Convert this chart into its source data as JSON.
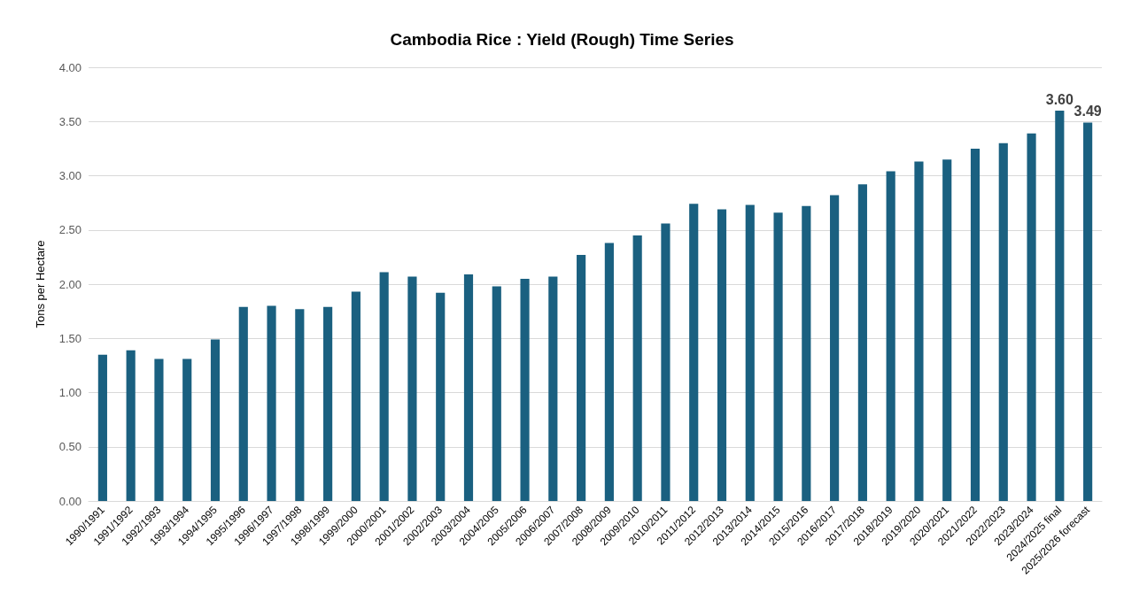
{
  "chart_data": {
    "type": "bar",
    "title": "Cambodia Rice : Yield (Rough) Time Series",
    "ylabel": "Tons per Hectare",
    "categories": [
      "1990/1991",
      "1991/1992",
      "1992/1993",
      "1993/1994",
      "1994/1995",
      "1995/1996",
      "1996/1997",
      "1997/1998",
      "1998/1999",
      "1999/2000",
      "2000/2001",
      "2001/2002",
      "2002/2003",
      "2003/2004",
      "2004/2005",
      "2005/2006",
      "2006/2007",
      "2007/2008",
      "2008/2009",
      "2009/2010",
      "2010/2011",
      "2011/2012",
      "2012/2013",
      "2013/2014",
      "2014/2015",
      "2015/2016",
      "2016/2017",
      "2017/2018",
      "2018/2019",
      "2019/2020",
      "2020/2021",
      "2021/2022",
      "2022/2023",
      "2023/2024",
      "2024/2025 final",
      "2025/2026 forecast"
    ],
    "values": [
      1.35,
      1.39,
      1.31,
      1.31,
      1.49,
      1.79,
      1.8,
      1.77,
      1.79,
      1.93,
      2.11,
      2.07,
      1.92,
      2.09,
      1.98,
      2.05,
      2.07,
      2.27,
      2.38,
      2.45,
      2.56,
      2.74,
      2.69,
      2.73,
      2.66,
      2.72,
      2.82,
      2.92,
      3.04,
      3.13,
      3.15,
      3.25,
      3.3,
      3.39,
      3.6,
      3.49
    ],
    "value_labels": [
      null,
      null,
      null,
      null,
      null,
      null,
      null,
      null,
      null,
      null,
      null,
      null,
      null,
      null,
      null,
      null,
      null,
      null,
      null,
      null,
      null,
      null,
      null,
      null,
      null,
      null,
      null,
      null,
      null,
      null,
      null,
      null,
      null,
      null,
      "3.60",
      "3.49"
    ],
    "color": "#1a6080",
    "ylim": [
      0,
      4
    ],
    "yticks": [
      {
        "value": 0,
        "label": "0.00"
      },
      {
        "value": 0.5,
        "label": "0.50"
      },
      {
        "value": 1,
        "label": "1.00"
      },
      {
        "value": 1.5,
        "label": "1.50"
      },
      {
        "value": 2,
        "label": "2.00"
      },
      {
        "value": 2.5,
        "label": "2.50"
      },
      {
        "value": 3,
        "label": "3.00"
      },
      {
        "value": 3.5,
        "label": "3.50"
      },
      {
        "value": 4,
        "label": "4.00"
      }
    ],
    "grid": "y"
  }
}
